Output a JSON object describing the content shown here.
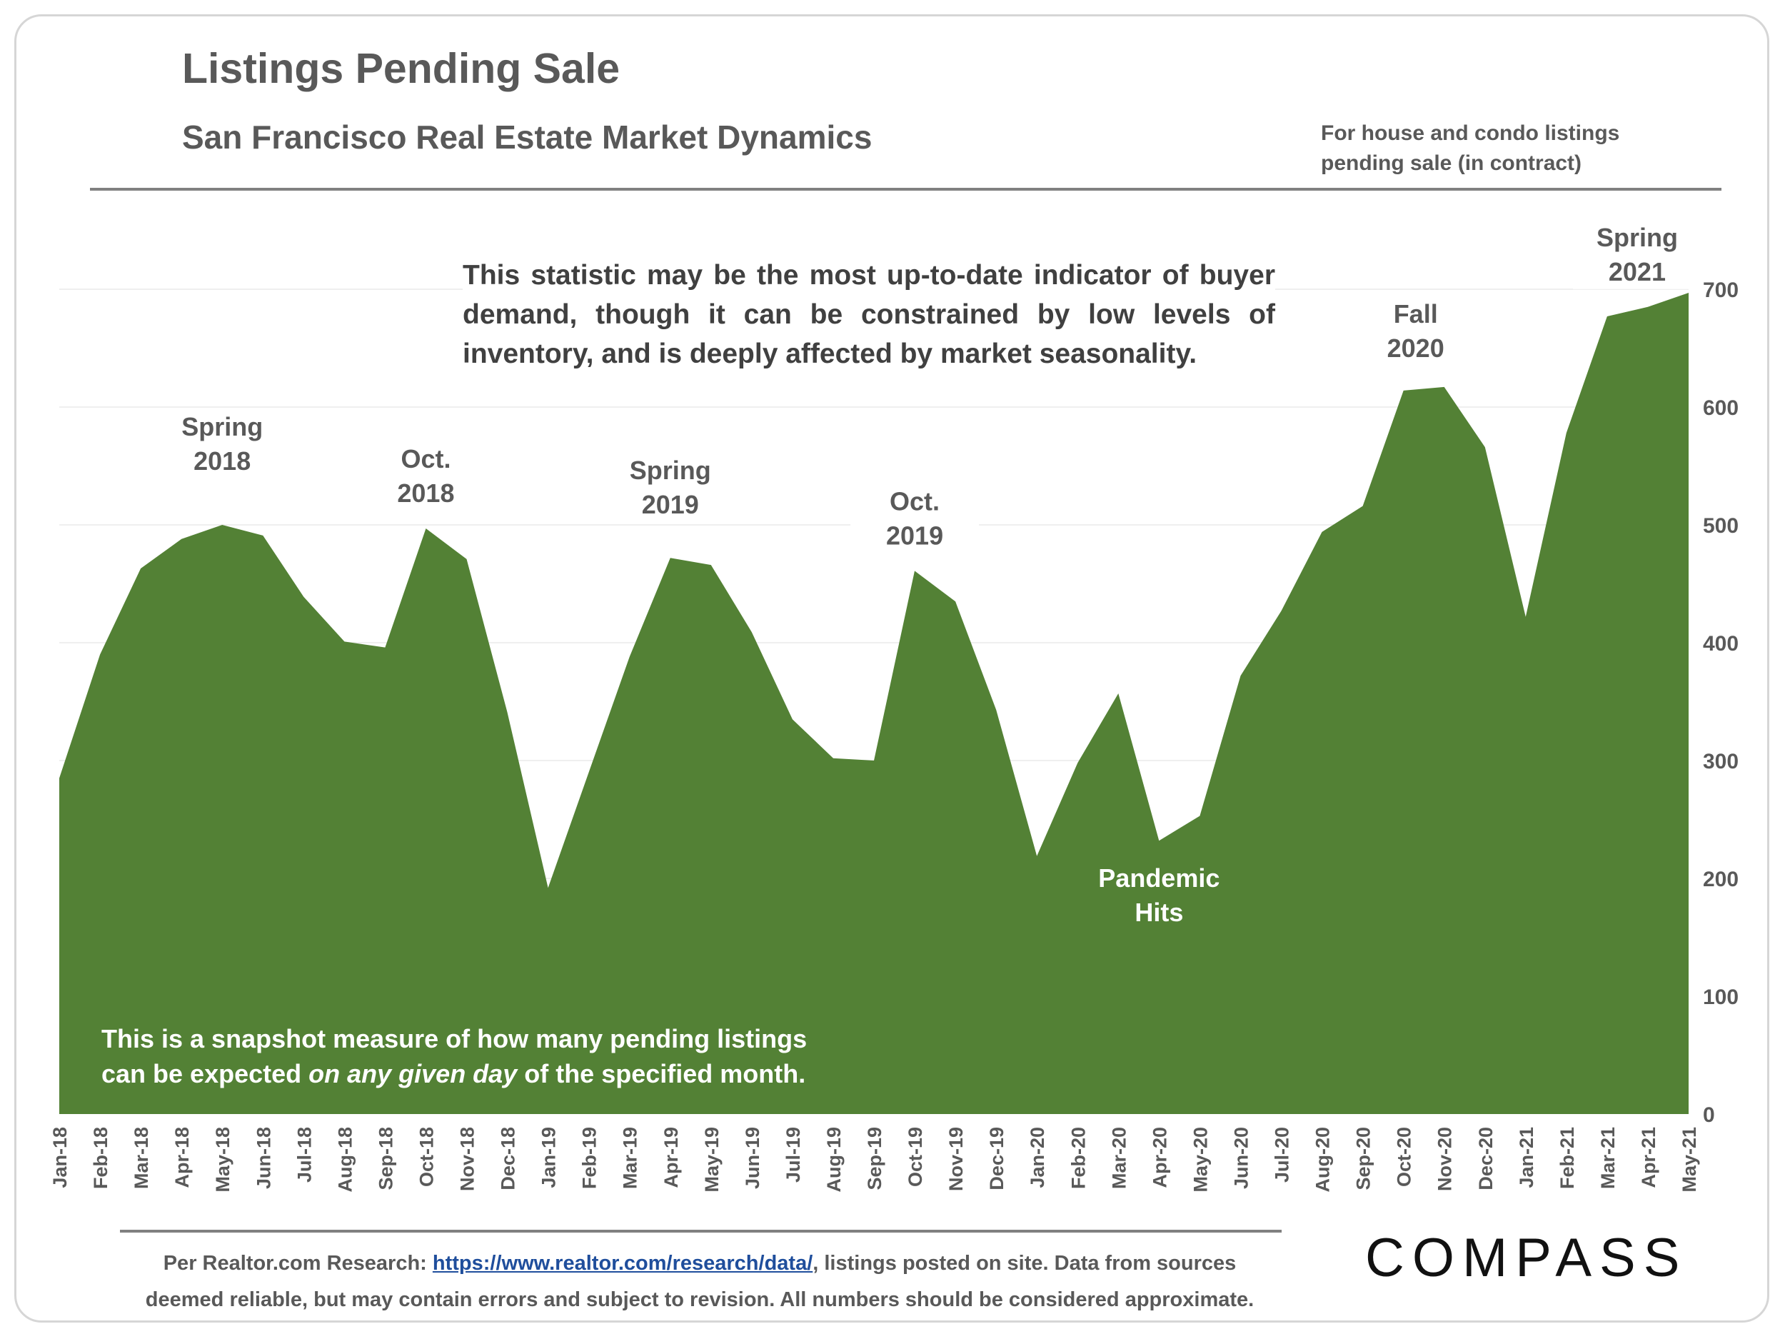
{
  "header": {
    "title": "Listings Pending Sale",
    "subtitle": "San Francisco Real Estate Market Dynamics",
    "note_line1": "For house and condo listings",
    "note_line2": "pending sale (in contract)"
  },
  "callouts": {
    "statement": "This statistic may be the most up-to-date indicator of buyer demand, though it can be constrained by low levels of inventory, and is deeply affected by market seasonality.",
    "snapshot_line1": "This is a snapshot measure of how many pending listings",
    "snapshot_line2_a": "can be expected ",
    "snapshot_line2_em": "on any given day",
    "snapshot_line2_b": " of the specified month."
  },
  "footer": {
    "prefix": "Per Realtor.com Research:  ",
    "link_text": "https://www.realtor.com/research/data/",
    "suffix": ", listings posted on site. Data from sources",
    "line2": "deemed reliable, but may contain errors and subject to revision. All numbers should be considered approximate."
  },
  "logo": {
    "text": "COMPASS"
  },
  "colors": {
    "area": "#538135",
    "text": "#595959",
    "gridline": "#efefef",
    "link": "#1f4e9c"
  },
  "chart_data": {
    "type": "area",
    "title": "Listings Pending Sale",
    "subtitle": "San Francisco Real Estate Market Dynamics",
    "xlabel": "",
    "ylabel": "",
    "ylim": [
      0,
      700
    ],
    "yticks": [
      0,
      100,
      200,
      300,
      400,
      500,
      600,
      700
    ],
    "y_axis_side": "right",
    "grid": true,
    "categories": [
      "Jan-18",
      "Feb-18",
      "Mar-18",
      "Apr-18",
      "May-18",
      "Jun-18",
      "Jul-18",
      "Aug-18",
      "Sep-18",
      "Oct-18",
      "Nov-18",
      "Dec-18",
      "Jan-19",
      "Feb-19",
      "Mar-19",
      "Apr-19",
      "May-19",
      "Jun-19",
      "Jul-19",
      "Aug-19",
      "Sep-19",
      "Oct-19",
      "Nov-19",
      "Dec-19",
      "Jan-20",
      "Feb-20",
      "Mar-20",
      "Apr-20",
      "May-20",
      "Jun-20",
      "Jul-20",
      "Aug-20",
      "Sep-20",
      "Oct-20",
      "Nov-20",
      "Dec-20",
      "Jan-21",
      "Feb-21",
      "Mar-21",
      "Apr-21",
      "May-21"
    ],
    "series": [
      {
        "name": "Listings Pending Sale",
        "values": [
          285,
          390,
          463,
          488,
          500,
          491,
          439,
          401,
          396,
          497,
          471,
          341,
          192,
          290,
          388,
          472,
          466,
          409,
          335,
          302,
          300,
          461,
          435,
          343,
          219,
          298,
          357,
          232,
          253,
          372,
          427,
          494,
          516,
          614,
          617,
          566,
          422,
          578,
          677,
          685,
          697
        ]
      }
    ],
    "annotations": [
      {
        "label_line1": "Spring",
        "label_line2": "2018",
        "category": "May-18"
      },
      {
        "label_line1": "Oct.",
        "label_line2": "2018",
        "category": "Oct-18"
      },
      {
        "label_line1": "Spring",
        "label_line2": "2019",
        "category": "Apr-19"
      },
      {
        "label_line1": "Oct.",
        "label_line2": "2019",
        "category": "Oct-19"
      },
      {
        "label_line1": "Pandemic",
        "label_line2": "Hits",
        "category": "Apr-20"
      },
      {
        "label_line1": "Fall",
        "label_line2": "2020",
        "category": "Nov-20"
      },
      {
        "label_line1": "Spring",
        "label_line2": "2021",
        "category": "Apr-21"
      }
    ]
  }
}
